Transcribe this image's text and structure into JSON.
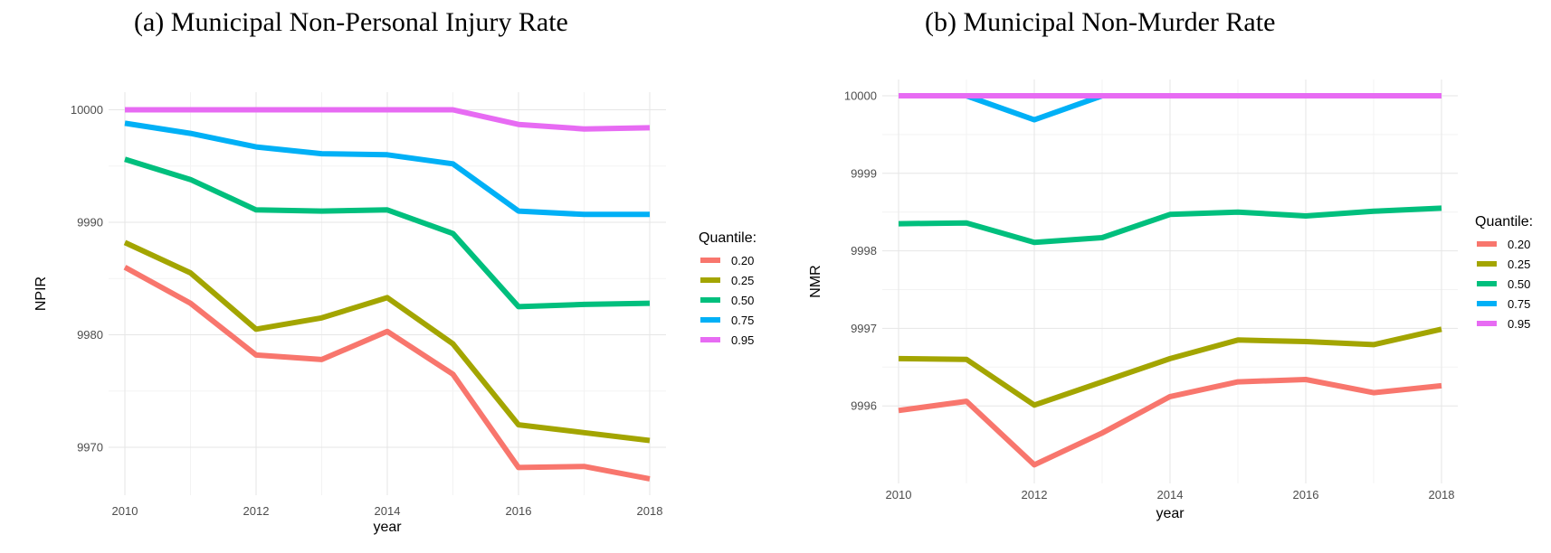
{
  "chart_data": [
    {
      "type": "line",
      "title": "(a) Municipal Non-Personal Injury Rate",
      "xlabel": "year",
      "ylabel": "NPIR",
      "x": [
        2010,
        2011,
        2012,
        2013,
        2014,
        2015,
        2016,
        2017,
        2018
      ],
      "xticks": [
        2010,
        2012,
        2014,
        2016,
        2018
      ],
      "yticks": [
        9970,
        9980,
        9990,
        10000
      ],
      "xlim": [
        2010,
        2018
      ],
      "ylim": [
        9967.0,
        10000.0
      ],
      "grid": true,
      "legend": {
        "title": "Quantile:",
        "position": "right"
      },
      "series": [
        {
          "name": "0.20",
          "color": "#F8766D",
          "values": [
            9986.0,
            9982.8,
            9978.2,
            9977.8,
            9980.3,
            9976.5,
            9968.2,
            9968.3,
            9967.2
          ]
        },
        {
          "name": "0.25",
          "color": "#A3A500",
          "values": [
            9988.2,
            9985.5,
            9980.5,
            9981.5,
            9983.3,
            9979.2,
            9972.0,
            9971.3,
            9970.6
          ]
        },
        {
          "name": "0.50",
          "color": "#00BF7D",
          "values": [
            9995.6,
            9993.8,
            9991.1,
            9991.0,
            9991.1,
            9989.0,
            9982.5,
            9982.7,
            9982.8
          ]
        },
        {
          "name": "0.75",
          "color": "#00B0F6",
          "values": [
            9998.8,
            9997.9,
            9996.7,
            9996.1,
            9996.0,
            9995.2,
            9991.0,
            9990.7,
            9990.7
          ]
        },
        {
          "name": "0.95",
          "color": "#E76BF3",
          "values": [
            10000.0,
            10000.0,
            10000.0,
            10000.0,
            10000.0,
            10000.0,
            9998.7,
            9998.3,
            9998.4
          ]
        }
      ]
    },
    {
      "type": "line",
      "title": "(b) Municipal Non-Murder Rate",
      "xlabel": "year",
      "ylabel": "NMR",
      "x": [
        2010,
        2011,
        2012,
        2013,
        2014,
        2015,
        2016,
        2017,
        2018
      ],
      "xticks": [
        2010,
        2012,
        2014,
        2016,
        2018
      ],
      "yticks": [
        9996,
        9997,
        9998,
        9999,
        10000
      ],
      "xlim": [
        2010,
        2018
      ],
      "ylim": [
        9995.2,
        10000.0
      ],
      "grid": true,
      "legend": {
        "title": "Quantile:",
        "position": "right"
      },
      "series": [
        {
          "name": "0.20",
          "color": "#F8766D",
          "values": [
            9995.94,
            9996.06,
            9995.24,
            9995.65,
            9996.12,
            9996.31,
            9996.34,
            9996.17,
            9996.26
          ]
        },
        {
          "name": "0.25",
          "color": "#A3A500",
          "values": [
            9996.61,
            9996.6,
            9996.01,
            9996.31,
            9996.61,
            9996.85,
            9996.83,
            9996.79,
            9996.99
          ]
        },
        {
          "name": "0.50",
          "color": "#00BF7D",
          "values": [
            9998.35,
            9998.36,
            9998.11,
            9998.17,
            9998.47,
            9998.5,
            9998.45,
            9998.51,
            9998.55
          ]
        },
        {
          "name": "0.75",
          "color": "#00B0F6",
          "values": [
            10000.0,
            10000.0,
            9999.69,
            10000.0,
            10000.0,
            10000.0,
            10000.0,
            10000.0,
            10000.0
          ]
        },
        {
          "name": "0.95",
          "color": "#E76BF3",
          "values": [
            10000.0,
            10000.0,
            10000.0,
            10000.0,
            10000.0,
            10000.0,
            10000.0,
            10000.0,
            10000.0
          ]
        }
      ]
    }
  ]
}
